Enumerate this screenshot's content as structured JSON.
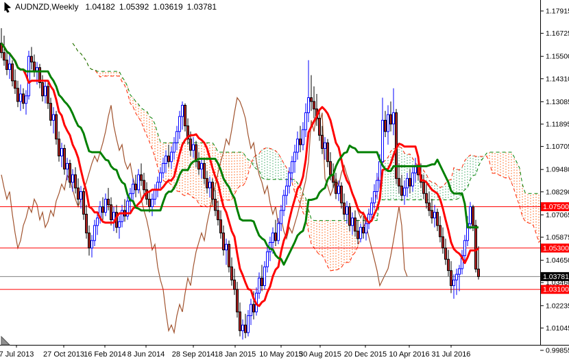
{
  "title": {
    "symbol": "AUDNZD,Weekly",
    "open": "1.04182",
    "high": "1.05392",
    "low": "1.03619",
    "close": "1.03781"
  },
  "chart_data": {
    "type": "candlestick",
    "symbol": "AUDNZD",
    "timeframe": "Weekly",
    "title": "AUDNZD,Weekly 1.04182 1.05392 1.03619 1.03781",
    "current_week_ohlc": [
      1.04182,
      1.05392,
      1.03619,
      1.03781
    ],
    "x_axis": {
      "labels": [
        "7 Jul 2013",
        "27 Oct 2013",
        "16 Feb 2014",
        "8 Jun 2014",
        "28 Sep 2014",
        "18 Jan 2015",
        "10 May 2015",
        "30 Aug 2015",
        "20 Dec 2015",
        "10 Apr 2016",
        "31 Jul 2016"
      ],
      "positions": [
        24,
        93,
        153,
        213,
        282,
        343,
        410,
        467,
        533,
        597,
        658
      ]
    },
    "y_axis": {
      "ticks": [
        "1.17915",
        "1.16725",
        "1.15500",
        "1.14310",
        "1.13085",
        "1.11895",
        "1.10705",
        "1.09480",
        "1.08290",
        "1.07065",
        "1.05875",
        "1.04650",
        "1.03460",
        "1.02235",
        "1.01045",
        "0.99855"
      ],
      "max": 1.17915,
      "min": 0.99855,
      "grid": false
    },
    "levels": [
      {
        "label": "1.07500",
        "price": 1.075
      },
      {
        "label": "1.05300",
        "price": 1.053
      },
      {
        "label": "1.03100",
        "price": 1.031
      }
    ],
    "current_price": {
      "label": "1.03781",
      "price": 1.03781
    },
    "indicator": {
      "name": "Ichimoku",
      "tenkan": 9,
      "kijun": 26,
      "senkou_b": 52,
      "shift": 26
    },
    "colors": {
      "background": "#FFFFFF",
      "axis": "#000000",
      "bull_outline": "#0000FF",
      "bull_fill": "#FFFFFF",
      "bear_outline": "#000000",
      "bear_fill": "#B22222",
      "tenkan": "#FF0000",
      "kijun": "#008000",
      "chikou": "#A0522D",
      "senkou_a": "#FF2200",
      "senkou_b": "#008000",
      "cloud_bull": "#2FA05A",
      "cloud_bear": "#FF5500",
      "level_line": "#FF0000",
      "level_badge": "#FF0000",
      "current_line": "#808080",
      "current_badge": "#000000",
      "badge_text": "#FFFFFF"
    },
    "candles": [
      [
        1.162,
        1.17,
        1.154,
        1.157
      ],
      [
        1.157,
        1.166,
        1.15,
        1.153
      ],
      [
        1.153,
        1.157,
        1.145,
        1.148
      ],
      [
        1.148,
        1.156,
        1.143,
        1.151
      ],
      [
        1.151,
        1.153,
        1.139,
        1.142
      ],
      [
        1.142,
        1.148,
        1.135,
        1.138
      ],
      [
        1.138,
        1.142,
        1.128,
        1.131
      ],
      [
        1.131,
        1.14,
        1.126,
        1.135
      ],
      [
        1.135,
        1.138,
        1.127,
        1.13
      ],
      [
        1.13,
        1.137,
        1.124,
        1.134
      ],
      [
        1.134,
        1.158,
        1.132,
        1.155
      ],
      [
        1.155,
        1.16,
        1.148,
        1.152
      ],
      [
        1.152,
        1.156,
        1.144,
        1.147
      ],
      [
        1.147,
        1.152,
        1.14,
        1.149
      ],
      [
        1.149,
        1.151,
        1.138,
        1.141
      ],
      [
        1.141,
        1.145,
        1.131,
        1.134
      ],
      [
        1.134,
        1.142,
        1.13,
        1.139
      ],
      [
        1.139,
        1.141,
        1.127,
        1.13
      ],
      [
        1.13,
        1.133,
        1.118,
        1.121
      ],
      [
        1.121,
        1.128,
        1.114,
        1.124
      ],
      [
        1.124,
        1.126,
        1.108,
        1.111
      ],
      [
        1.111,
        1.115,
        1.099,
        1.102
      ],
      [
        1.102,
        1.109,
        1.096,
        1.106
      ],
      [
        1.106,
        1.108,
        1.092,
        1.095
      ],
      [
        1.095,
        1.101,
        1.089,
        1.098
      ],
      [
        1.098,
        1.1,
        1.085,
        1.088
      ],
      [
        1.088,
        1.095,
        1.083,
        1.092
      ],
      [
        1.092,
        1.096,
        1.082,
        1.085
      ],
      [
        1.085,
        1.09,
        1.076,
        1.079
      ],
      [
        1.079,
        1.086,
        1.074,
        1.083
      ],
      [
        1.083,
        1.085,
        1.068,
        1.071
      ],
      [
        1.071,
        1.076,
        1.058,
        1.061
      ],
      [
        1.061,
        1.065,
        1.049,
        1.053
      ],
      [
        1.053,
        1.06,
        1.048,
        1.057
      ],
      [
        1.057,
        1.068,
        1.054,
        1.065
      ],
      [
        1.065,
        1.072,
        1.06,
        1.069
      ],
      [
        1.069,
        1.078,
        1.066,
        1.075
      ],
      [
        1.075,
        1.08,
        1.068,
        1.072
      ],
      [
        1.072,
        1.082,
        1.07,
        1.079
      ],
      [
        1.079,
        1.085,
        1.073,
        1.076
      ],
      [
        1.076,
        1.08,
        1.065,
        1.068
      ],
      [
        1.068,
        1.075,
        1.062,
        1.072
      ],
      [
        1.072,
        1.076,
        1.061,
        1.064
      ],
      [
        1.064,
        1.07,
        1.058,
        1.067
      ],
      [
        1.067,
        1.076,
        1.064,
        1.073
      ],
      [
        1.073,
        1.079,
        1.067,
        1.07
      ],
      [
        1.07,
        1.081,
        1.068,
        1.078
      ],
      [
        1.078,
        1.085,
        1.072,
        1.082
      ],
      [
        1.082,
        1.09,
        1.078,
        1.087
      ],
      [
        1.087,
        1.092,
        1.08,
        1.084
      ],
      [
        1.084,
        1.095,
        1.082,
        1.092
      ],
      [
        1.092,
        1.098,
        1.086,
        1.089
      ],
      [
        1.089,
        1.093,
        1.081,
        1.084
      ],
      [
        1.084,
        1.088,
        1.076,
        1.079
      ],
      [
        1.079,
        1.083,
        1.072,
        1.075
      ],
      [
        1.075,
        1.082,
        1.07,
        1.079
      ],
      [
        1.079,
        1.087,
        1.076,
        1.084
      ],
      [
        1.084,
        1.091,
        1.08,
        1.088
      ],
      [
        1.088,
        1.096,
        1.085,
        1.093
      ],
      [
        1.093,
        1.101,
        1.09,
        1.098
      ],
      [
        1.098,
        1.105,
        1.093,
        1.102
      ],
      [
        1.102,
        1.108,
        1.096,
        1.099
      ],
      [
        1.099,
        1.107,
        1.095,
        1.104
      ],
      [
        1.104,
        1.112,
        1.1,
        1.109
      ],
      [
        1.109,
        1.118,
        1.105,
        1.115
      ],
      [
        1.115,
        1.126,
        1.111,
        1.123
      ],
      [
        1.123,
        1.131,
        1.116,
        1.129
      ],
      [
        1.129,
        1.13,
        1.115,
        1.118
      ],
      [
        1.118,
        1.122,
        1.108,
        1.111
      ],
      [
        1.111,
        1.115,
        1.102,
        1.105
      ],
      [
        1.105,
        1.112,
        1.101,
        1.108
      ],
      [
        1.108,
        1.11,
        1.096,
        1.099
      ],
      [
        1.099,
        1.104,
        1.092,
        1.095
      ],
      [
        1.095,
        1.101,
        1.09,
        1.098
      ],
      [
        1.098,
        1.1,
        1.087,
        1.09
      ],
      [
        1.09,
        1.094,
        1.082,
        1.085
      ],
      [
        1.085,
        1.091,
        1.08,
        1.088
      ],
      [
        1.088,
        1.09,
        1.076,
        1.079
      ],
      [
        1.079,
        1.084,
        1.07,
        1.073
      ],
      [
        1.073,
        1.078,
        1.065,
        1.068
      ],
      [
        1.068,
        1.073,
        1.058,
        1.061
      ],
      [
        1.061,
        1.065,
        1.049,
        1.052
      ],
      [
        1.052,
        1.058,
        1.044,
        1.055
      ],
      [
        1.055,
        1.057,
        1.04,
        1.043
      ],
      [
        1.043,
        1.048,
        1.033,
        1.036
      ],
      [
        1.036,
        1.042,
        1.028,
        1.031
      ],
      [
        1.031,
        1.035,
        1.016,
        1.019
      ],
      [
        1.019,
        1.024,
        1.006,
        1.009
      ],
      [
        1.009,
        1.015,
        1.0043,
        1.012
      ],
      [
        1.012,
        1.018,
        1.005,
        1.008
      ],
      [
        1.008,
        1.02,
        1.006,
        1.017
      ],
      [
        1.017,
        1.026,
        1.012,
        1.023
      ],
      [
        1.023,
        1.03,
        1.015,
        1.019
      ],
      [
        1.019,
        1.032,
        1.017,
        1.029
      ],
      [
        1.029,
        1.04,
        1.026,
        1.037
      ],
      [
        1.037,
        1.044,
        1.03,
        1.033
      ],
      [
        1.033,
        1.046,
        1.031,
        1.043
      ],
      [
        1.043,
        1.054,
        1.04,
        1.051
      ],
      [
        1.051,
        1.059,
        1.046,
        1.056
      ],
      [
        1.056,
        1.064,
        1.05,
        1.061
      ],
      [
        1.061,
        1.068,
        1.054,
        1.057
      ],
      [
        1.057,
        1.069,
        1.055,
        1.066
      ],
      [
        1.066,
        1.076,
        1.062,
        1.073
      ],
      [
        1.073,
        1.084,
        1.07,
        1.081
      ],
      [
        1.081,
        1.09,
        1.076,
        1.086
      ],
      [
        1.086,
        1.096,
        1.082,
        1.093
      ],
      [
        1.093,
        1.102,
        1.088,
        1.099
      ],
      [
        1.099,
        1.108,
        1.093,
        1.104
      ],
      [
        1.104,
        1.115,
        1.1,
        1.111
      ],
      [
        1.111,
        1.118,
        1.104,
        1.108
      ],
      [
        1.108,
        1.12,
        1.105,
        1.116
      ],
      [
        1.116,
        1.13,
        1.112,
        1.125
      ],
      [
        1.125,
        1.153,
        1.12,
        1.133
      ],
      [
        1.133,
        1.145,
        1.126,
        1.131
      ],
      [
        1.131,
        1.139,
        1.122,
        1.127
      ],
      [
        1.127,
        1.135,
        1.118,
        1.122
      ],
      [
        1.122,
        1.126,
        1.11,
        1.113
      ],
      [
        1.113,
        1.118,
        1.103,
        1.106
      ],
      [
        1.106,
        1.112,
        1.1,
        1.109
      ],
      [
        1.109,
        1.111,
        1.096,
        1.099
      ],
      [
        1.099,
        1.104,
        1.089,
        1.092
      ],
      [
        1.092,
        1.098,
        1.085,
        1.088
      ],
      [
        1.088,
        1.093,
        1.079,
        1.082
      ],
      [
        1.082,
        1.089,
        1.078,
        1.086
      ],
      [
        1.086,
        1.088,
        1.074,
        1.077
      ],
      [
        1.077,
        1.082,
        1.068,
        1.071
      ],
      [
        1.071,
        1.078,
        1.066,
        1.075
      ],
      [
        1.075,
        1.077,
        1.062,
        1.065
      ],
      [
        1.065,
        1.072,
        1.06,
        1.069
      ],
      [
        1.069,
        1.073,
        1.059,
        1.062
      ],
      [
        1.062,
        1.068,
        1.055,
        1.058
      ],
      [
        1.058,
        1.066,
        1.056,
        1.064
      ],
      [
        1.064,
        1.07,
        1.058,
        1.061
      ],
      [
        1.061,
        1.069,
        1.057,
        1.066
      ],
      [
        1.066,
        1.074,
        1.063,
        1.071
      ],
      [
        1.071,
        1.08,
        1.067,
        1.077
      ],
      [
        1.077,
        1.087,
        1.074,
        1.083
      ],
      [
        1.083,
        1.093,
        1.079,
        1.089
      ],
      [
        1.089,
        1.103,
        1.085,
        1.099
      ],
      [
        1.099,
        1.133,
        1.096,
        1.121
      ],
      [
        1.121,
        1.126,
        1.112,
        1.115
      ],
      [
        1.115,
        1.129,
        1.108,
        1.124
      ],
      [
        1.124,
        1.131,
        1.115,
        1.119
      ],
      [
        1.119,
        1.138,
        1.113,
        1.125
      ],
      [
        1.125,
        1.127,
        1.087,
        1.09
      ],
      [
        1.09,
        1.098,
        1.082,
        1.086
      ],
      [
        1.086,
        1.092,
        1.078,
        1.081
      ],
      [
        1.081,
        1.089,
        1.076,
        1.085
      ],
      [
        1.085,
        1.093,
        1.08,
        1.09
      ],
      [
        1.09,
        1.095,
        1.082,
        1.086
      ],
      [
        1.086,
        1.096,
        1.083,
        1.093
      ],
      [
        1.093,
        1.101,
        1.088,
        1.097
      ],
      [
        1.097,
        1.102,
        1.089,
        1.092
      ],
      [
        1.092,
        1.098,
        1.085,
        1.088
      ],
      [
        1.088,
        1.092,
        1.079,
        1.082
      ],
      [
        1.082,
        1.087,
        1.074,
        1.077
      ],
      [
        1.077,
        1.083,
        1.07,
        1.073
      ],
      [
        1.073,
        1.079,
        1.066,
        1.069
      ],
      [
        1.069,
        1.076,
        1.064,
        1.072
      ],
      [
        1.072,
        1.074,
        1.062,
        1.065
      ],
      [
        1.065,
        1.07,
        1.056,
        1.059
      ],
      [
        1.059,
        1.064,
        1.05,
        1.053
      ],
      [
        1.053,
        1.058,
        1.044,
        1.047
      ],
      [
        1.047,
        1.052,
        1.038,
        1.041
      ],
      [
        1.041,
        1.046,
        1.029,
        1.033
      ],
      [
        1.033,
        1.039,
        1.026,
        1.036
      ],
      [
        1.036,
        1.042,
        1.028,
        1.039
      ],
      [
        1.039,
        1.044,
        1.03,
        1.042
      ],
      [
        1.042,
        1.052,
        1.039,
        1.049
      ],
      [
        1.049,
        1.06,
        1.046,
        1.057
      ],
      [
        1.057,
        1.07,
        1.054,
        1.066
      ],
      [
        1.066,
        1.0775,
        1.063,
        1.075
      ],
      [
        1.075,
        1.076,
        1.062,
        1.065
      ],
      [
        1.065,
        1.068,
        1.04,
        1.0418
      ],
      [
        1.04182,
        1.05392,
        1.03619,
        1.03781
      ]
    ]
  }
}
